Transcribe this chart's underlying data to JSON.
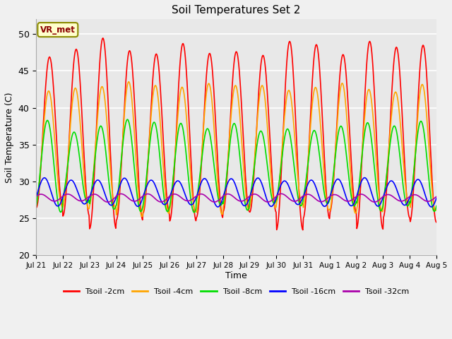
{
  "title": "Soil Temperatures Set 2",
  "xlabel": "Time",
  "ylabel": "Soil Temperature (C)",
  "ylim": [
    20,
    52
  ],
  "yticks": [
    20,
    25,
    30,
    35,
    40,
    45,
    50
  ],
  "date_labels": [
    "Jul 21",
    "Jul 22",
    "Jul 23",
    "Jul 24",
    "Jul 25",
    "Jul 26",
    "Jul 27",
    "Jul 28",
    "Jul 29",
    "Jul 30",
    "Jul 31",
    "Aug 1",
    "Aug 2",
    "Aug 3",
    "Aug 4",
    "Aug 5"
  ],
  "line_colors": [
    "#ff0000",
    "#ffa500",
    "#00dd00",
    "#0000ff",
    "#aa00aa"
  ],
  "line_labels": [
    "Tsoil -2cm",
    "Tsoil -4cm",
    "Tsoil -8cm",
    "Tsoil -16cm",
    "Tsoil -32cm"
  ],
  "line_widths": [
    1.2,
    1.2,
    1.2,
    1.2,
    1.2
  ],
  "annotation_text": "VR_met",
  "bg_color": "#e8e8e8",
  "fig_bg_color": "#f0f0f0",
  "grid_color": "#ffffff",
  "n_days": 15,
  "pts_per_day": 48,
  "amp2": 11.5,
  "base2": 36.5,
  "amp4": 8.5,
  "base4": 34.5,
  "amp8": 5.5,
  "base8": 32.0,
  "amp16": 1.8,
  "base16": 28.5,
  "amp32": 0.5,
  "base32": 27.8
}
